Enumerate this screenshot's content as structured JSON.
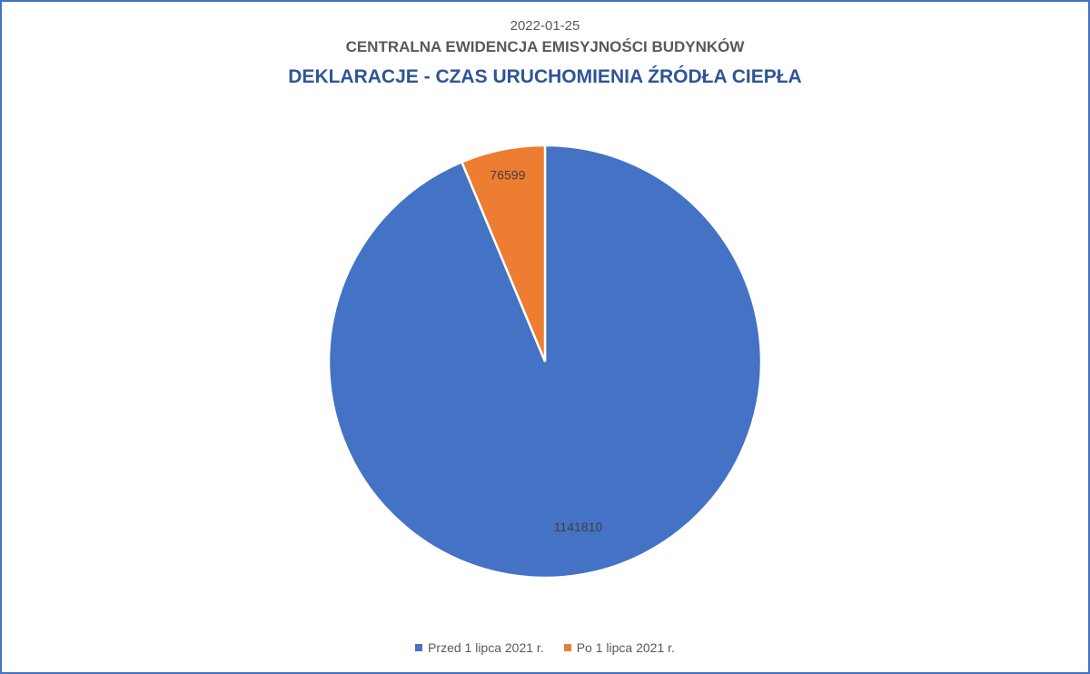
{
  "date": "2022-01-25",
  "subtitle": "CENTRALNA EWIDENCJA EMISYJNOŚCI BUDYNKÓW",
  "title": "DEKLARACJE - CZAS URUCHOMIENIA ŹRÓDŁA CIEPŁA",
  "colors": {
    "series_1": "#4472c4",
    "series_2": "#ed7d31",
    "title": "#2f5597",
    "frame": "#4472c4"
  },
  "chart_data": {
    "type": "pie",
    "title": "DEKLARACJE - CZAS URUCHOMIENIA ŹRÓDŁA CIEPŁA",
    "categories": [
      "Przed 1 lipca 2021 r.",
      "Po 1 lipca 2021 r."
    ],
    "values": [
      1141810,
      76599
    ],
    "data_labels": [
      "1141810",
      "76599"
    ],
    "colors": [
      "#4472c4",
      "#ed7d31"
    ],
    "legend_position": "bottom"
  }
}
